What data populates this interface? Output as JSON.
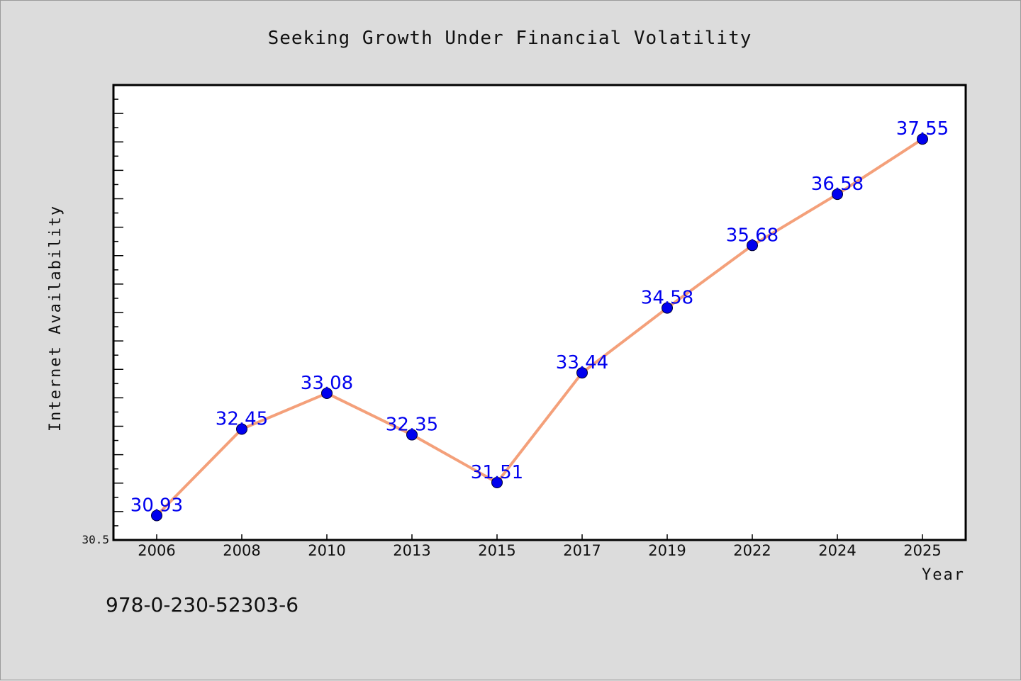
{
  "chart_data": {
    "type": "line",
    "title": "Seeking Growth Under Financial Volatility",
    "xlabel": "Year",
    "ylabel": "Internet Availability",
    "categories": [
      "2006",
      "2008",
      "2010",
      "2013",
      "2015",
      "2017",
      "2019",
      "2022",
      "2024",
      "2025"
    ],
    "series": [
      {
        "values": [
          30.93,
          32.45,
          33.08,
          32.35,
          31.51,
          33.44,
          34.58,
          35.68,
          36.58,
          37.55
        ],
        "line_color": "#f4a07a",
        "marker_color": "#0000ee"
      }
    ],
    "data_labels": [
      "30.93",
      "32.45",
      "33.08",
      "32.35",
      "31.51",
      "33.44",
      "34.58",
      "35.68",
      "36.58",
      "37.55"
    ],
    "ylim": [
      30.5,
      38.5
    ],
    "yticks_labeled": [
      "30.5"
    ],
    "grid": false,
    "legend": "none",
    "label_color": "#0000ee"
  },
  "footnote": "978-0-230-52303-6"
}
